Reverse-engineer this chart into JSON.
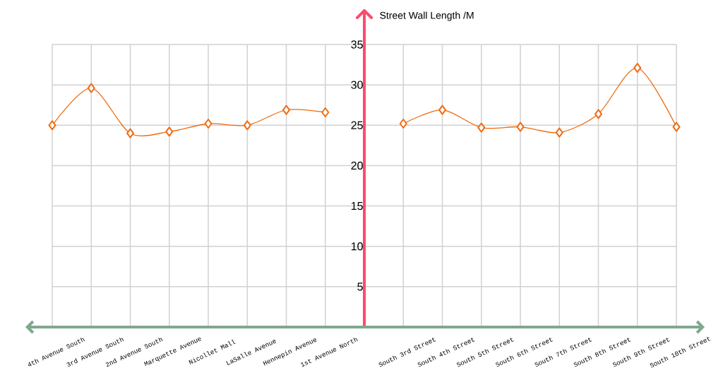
{
  "chart_data": {
    "type": "line",
    "ylabel": "Street Wall Length /M",
    "categories": [
      "4th Avenue South",
      "3rd Avenue South",
      "2nd Avenue South",
      "Marquette Avenue",
      "Nicollet Mall",
      "LaSalle Avenue",
      "Hennepin Avenue",
      "1st Avenue North",
      null,
      "South 3rd Street",
      "South 4th Street",
      "South 5th Street",
      "South 6th Street",
      "South 7th Street",
      "South 8th Street",
      "South 9th Street",
      "South 10th Street"
    ],
    "series": [
      {
        "color": "#f06a0f",
        "values": [
          25.0,
          29.6,
          24.0,
          24.2,
          25.2,
          25.0,
          26.9,
          26.6,
          null,
          25.2,
          26.9,
          24.7,
          24.8,
          24.1,
          26.4,
          32.1,
          24.8
        ]
      }
    ],
    "ylim": [
      0,
      35
    ],
    "yticks": [
      5,
      10,
      15,
      20,
      25,
      30,
      35
    ],
    "grid": true,
    "marker": "diamond",
    "line_style": "solid"
  }
}
